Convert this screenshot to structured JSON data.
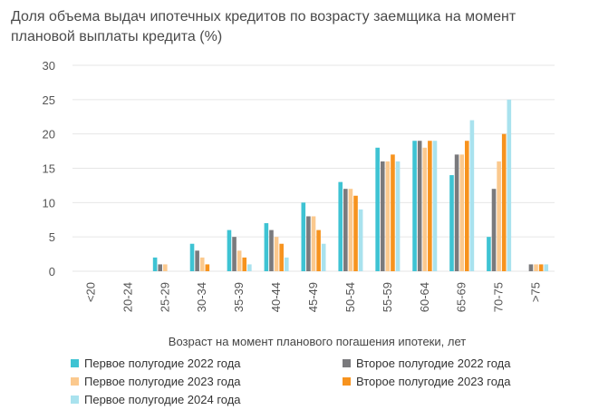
{
  "chart_data": {
    "type": "bar",
    "title": "Доля объема выдач ипотечных кредитов по возрасту заемщика на момент плановой выплаты кредита (%)",
    "xlabel": "Возраст на момент планового погашения ипотеки, лет",
    "ylabel": "",
    "ylim": [
      0,
      30
    ],
    "yticks": [
      "0",
      "5",
      "10",
      "15",
      "20",
      "25",
      "30"
    ],
    "categories": [
      "<20",
      "20-24",
      "25-29",
      "30-34",
      "35-39",
      "40-44",
      "45-49",
      "50-54",
      "55-59",
      "60-64",
      "65-69",
      "70-75",
      ">75"
    ],
    "series": [
      {
        "name": "Первое полугодие 2022 года",
        "color": "#3ec3d3",
        "values": [
          0,
          0,
          2,
          4,
          6,
          7,
          10,
          13,
          18,
          19,
          14,
          5,
          0
        ]
      },
      {
        "name": "Второе полугодие 2022 года",
        "color": "#7a7a7d",
        "values": [
          0,
          0,
          1,
          3,
          5,
          6,
          8,
          12,
          16,
          19,
          17,
          12,
          1
        ]
      },
      {
        "name": "Первое полугодие 2023 года",
        "color": "#fbc98e",
        "values": [
          0,
          0,
          1,
          2,
          3,
          5,
          8,
          12,
          16,
          18,
          17,
          16,
          1
        ]
      },
      {
        "name": "Второе полугодие 2023 года",
        "color": "#f7931e",
        "values": [
          0,
          0,
          0,
          1,
          2,
          4,
          6,
          11,
          17,
          19,
          19,
          20,
          1
        ]
      },
      {
        "name": "Первое полугодие 2024 года",
        "color": "#a9e2ee",
        "values": [
          0,
          0,
          0,
          0,
          1,
          2,
          4,
          9,
          16,
          19,
          22,
          25,
          1
        ]
      }
    ]
  }
}
